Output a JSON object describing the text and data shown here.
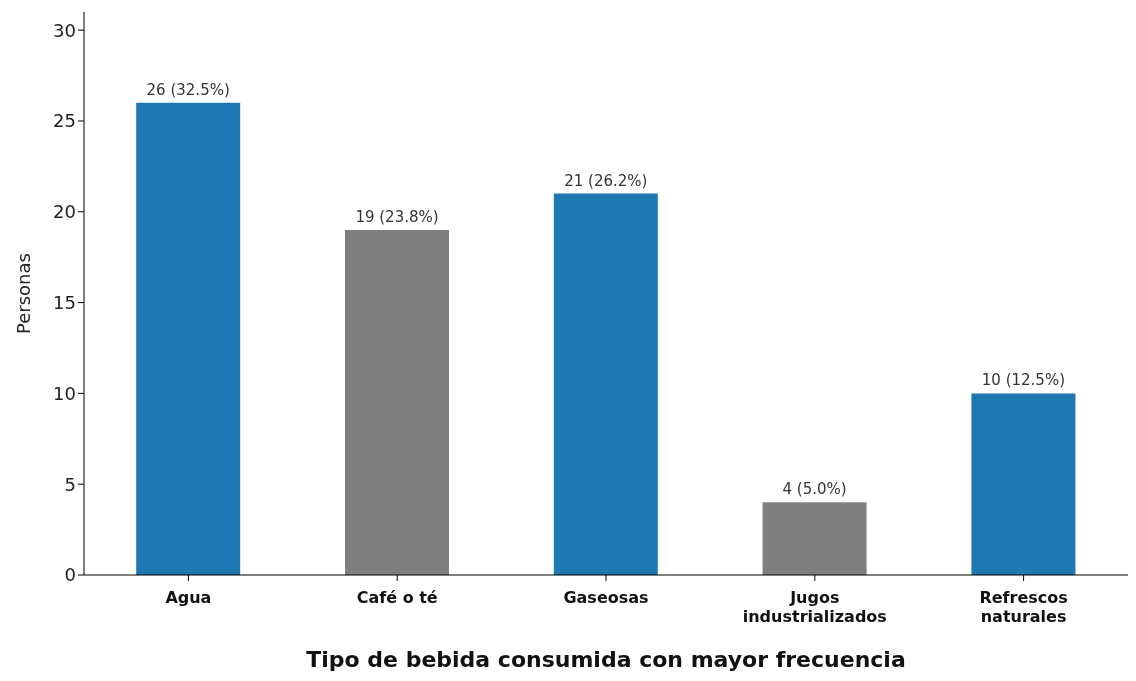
{
  "chart_data": {
    "type": "bar",
    "xlabel": "Tipo de bebida consumida con mayor frecuencia",
    "ylabel": "Personas",
    "categories": [
      "Agua",
      "Café o té",
      "Gaseosas",
      "Jugos industrializados",
      "Refrescos naturales"
    ],
    "values": [
      26,
      19,
      21,
      4,
      10
    ],
    "colors": [
      "#1f77b4",
      "#7f7f7f",
      "#1f77b4",
      "#7f7f7f",
      "#1f77b4"
    ],
    "value_labels": [
      "26 (32.5%)",
      "19 (23.8%)",
      "21 (26.2%)",
      "4 (5.0%)",
      "10 (12.5%)"
    ],
    "ylim": [
      0,
      31
    ],
    "yticks": [
      0,
      5,
      10,
      15,
      20,
      25,
      30
    ],
    "grid": false,
    "legend": false
  }
}
